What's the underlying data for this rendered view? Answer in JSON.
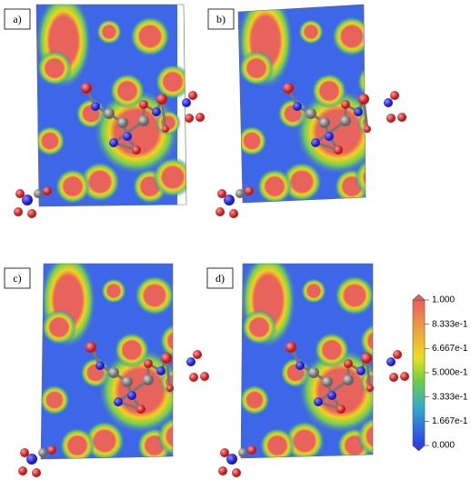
{
  "panels": [
    {
      "label": "a)"
    },
    {
      "label": "b)"
    },
    {
      "label": "c)"
    },
    {
      "label": "d)"
    }
  ],
  "colorbar": {
    "ticks": [
      "1.000",
      "8.333e-1",
      "6.667e-1",
      "5.000e-1",
      "3.333e-1",
      "1.667e-1",
      "0.000"
    ]
  }
}
